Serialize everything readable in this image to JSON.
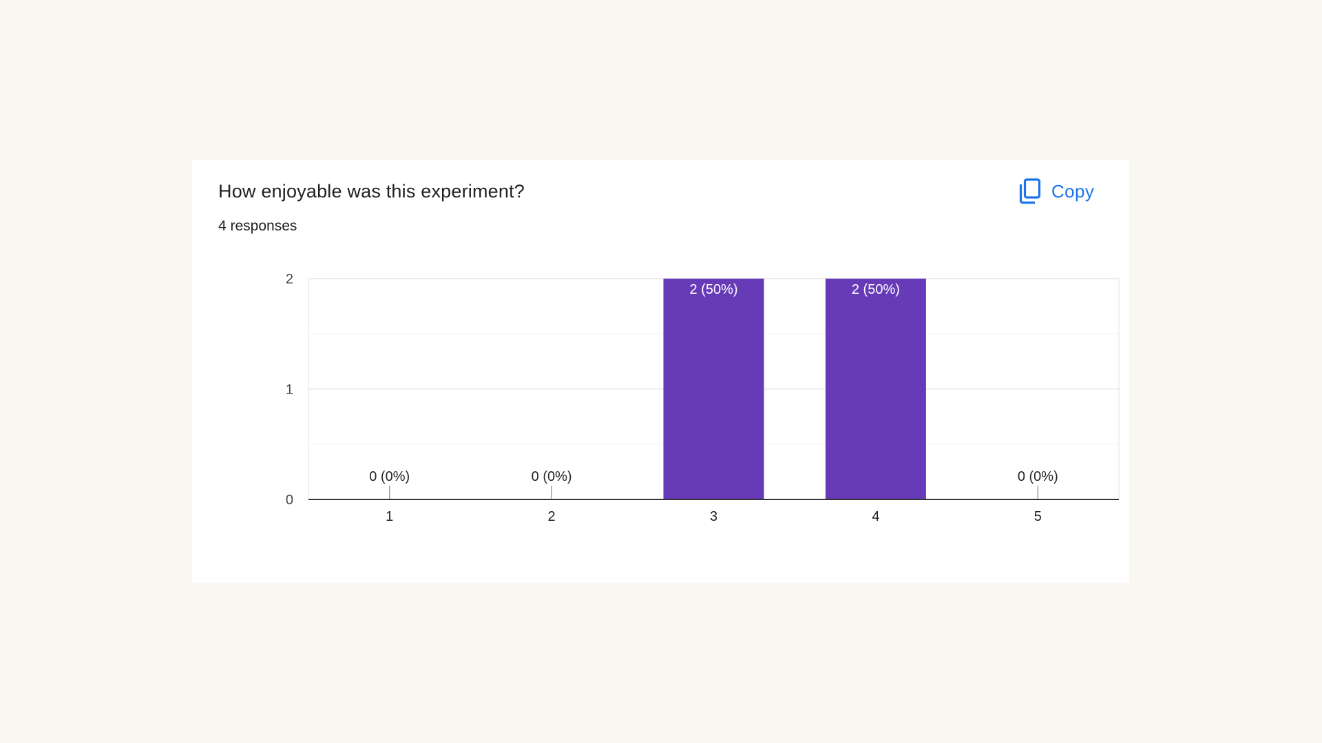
{
  "card": {
    "title": "How enjoyable was this experiment?",
    "subtitle": "4 responses",
    "copy_label": "Copy",
    "copy_icon": "copy-icon"
  },
  "colors": {
    "bar": "#673ab7",
    "accent": "#1a73e8",
    "background": "#faf6f1"
  },
  "chart_data": {
    "type": "bar",
    "categories": [
      "1",
      "2",
      "3",
      "4",
      "5"
    ],
    "values": [
      0,
      0,
      2,
      2,
      0
    ],
    "data_labels": [
      "0 (0%)",
      "0 (0%)",
      "2 (50%)",
      "2 (50%)",
      "0 (0%)"
    ],
    "ylim": [
      0,
      2
    ],
    "yticks": [
      0,
      1,
      2
    ],
    "grid": true,
    "title": "",
    "xlabel": "",
    "ylabel": ""
  }
}
